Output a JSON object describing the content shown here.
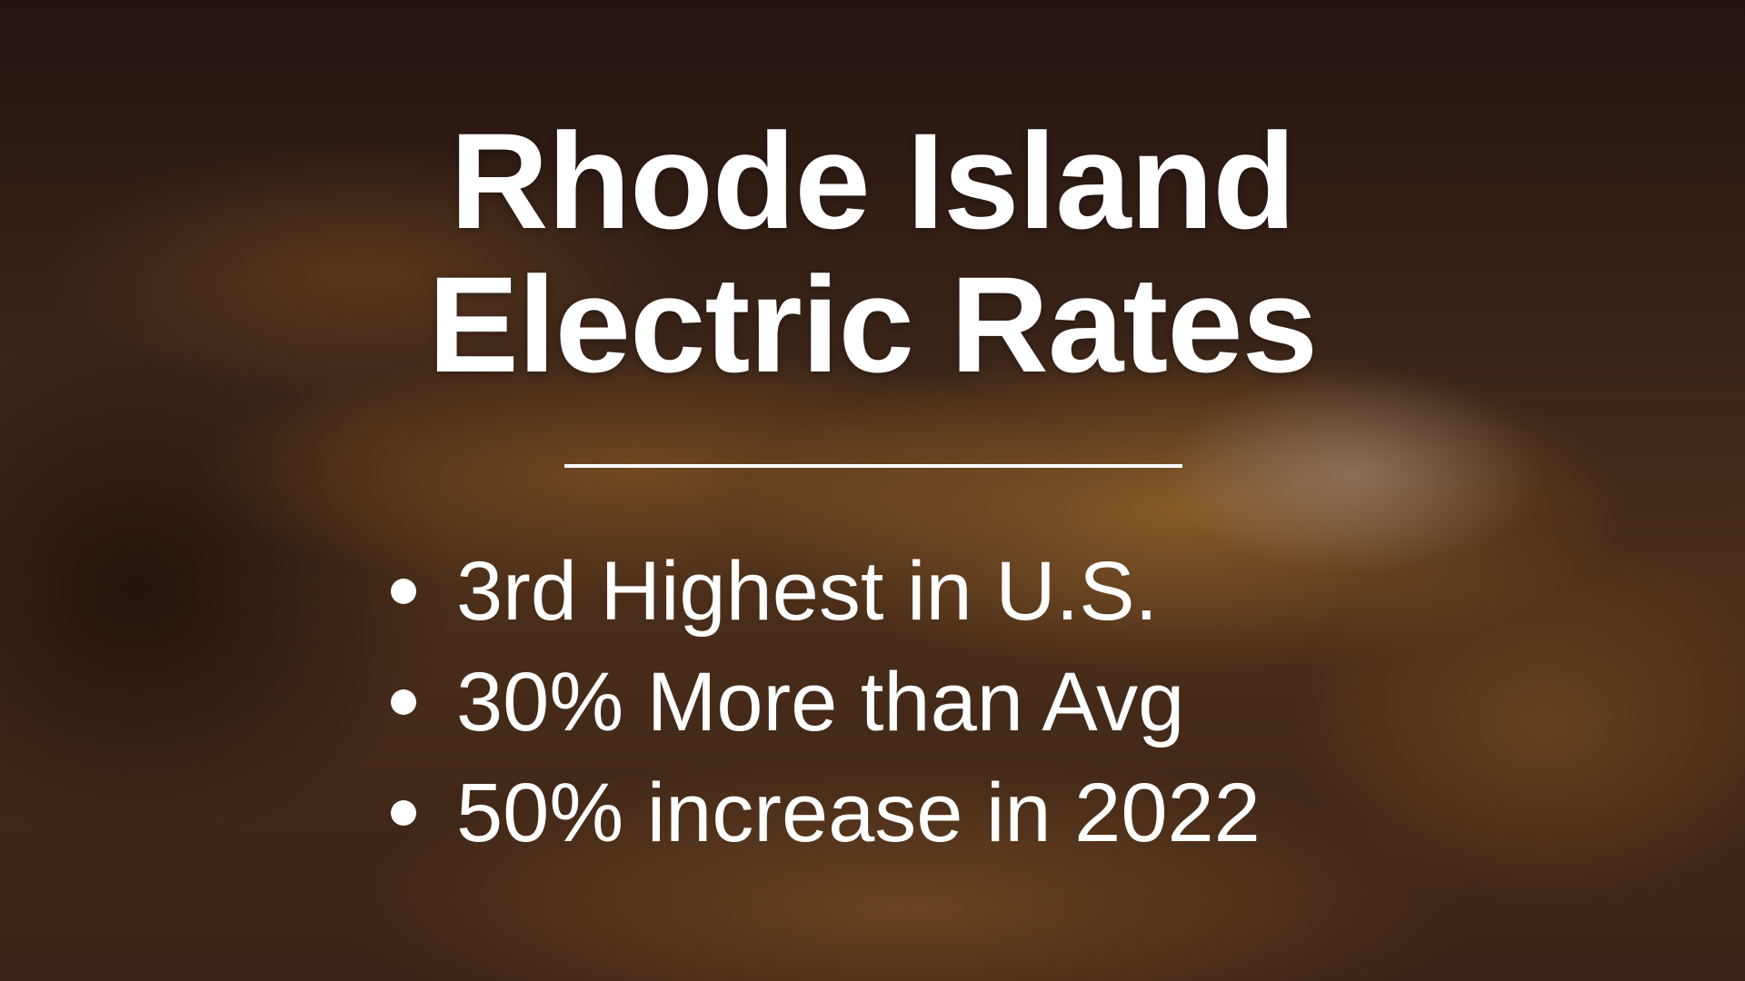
{
  "slide": {
    "title_line1": "Rhode Island",
    "title_line2": "Electric Rates",
    "bullets": [
      "3rd Highest in U.S.",
      "30% More than Avg",
      "50% increase in 2022"
    ]
  },
  "colors": {
    "text": "#ffffff",
    "background": "#3a2418",
    "glow": "#be8232"
  }
}
